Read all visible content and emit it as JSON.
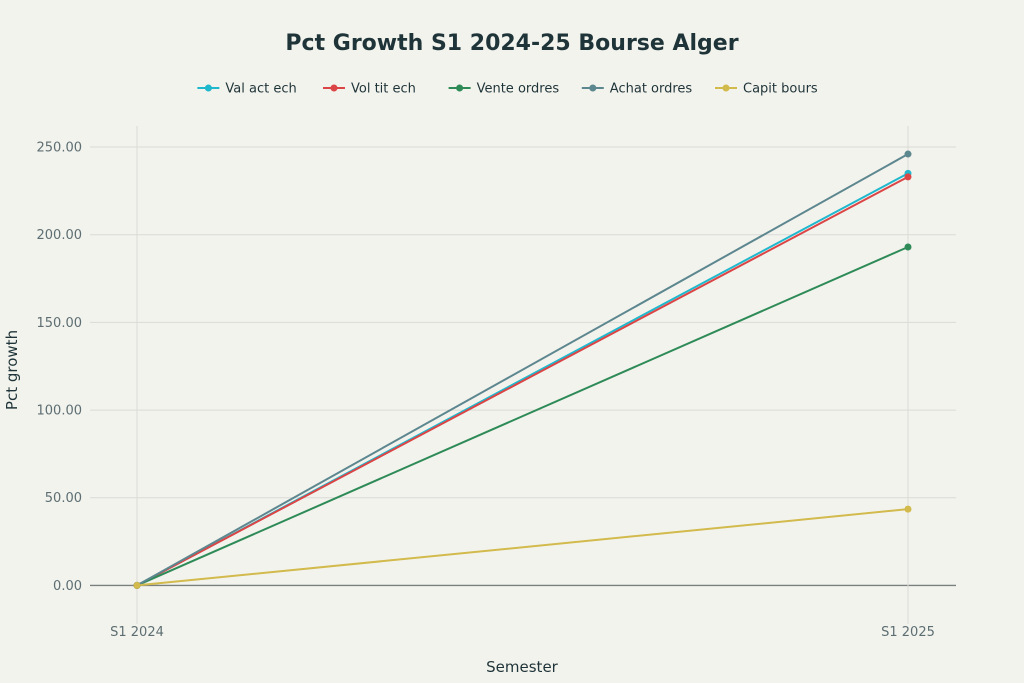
{
  "chart_data": {
    "type": "line",
    "title": "Pct Growth S1 2024-25 Bourse Alger",
    "xlabel": "Semester",
    "ylabel": "Pct growth",
    "categories": [
      "S1 2024",
      "S1 2025"
    ],
    "ylim": [
      -22,
      262
    ],
    "yticks": [
      "0.00",
      "50.00",
      "100.00",
      "150.00",
      "200.00",
      "250.00"
    ],
    "ytick_values": [
      0,
      50,
      100,
      150,
      200,
      250
    ],
    "grid": true,
    "legend_position": "top",
    "series": [
      {
        "name": "Val act ech",
        "color": "#1fb8cd",
        "values": [
          0,
          235
        ]
      },
      {
        "name": "Vol tit ech",
        "color": "#db4545",
        "values": [
          0,
          233
        ]
      },
      {
        "name": "Vente ordres",
        "color": "#2e8b57",
        "values": [
          0,
          193
        ]
      },
      {
        "name": "Achat ordres",
        "color": "#5d878f",
        "values": [
          0,
          246
        ]
      },
      {
        "name": "Capit bours",
        "color": "#d2ba4c",
        "values": [
          0,
          43.5
        ]
      }
    ]
  }
}
